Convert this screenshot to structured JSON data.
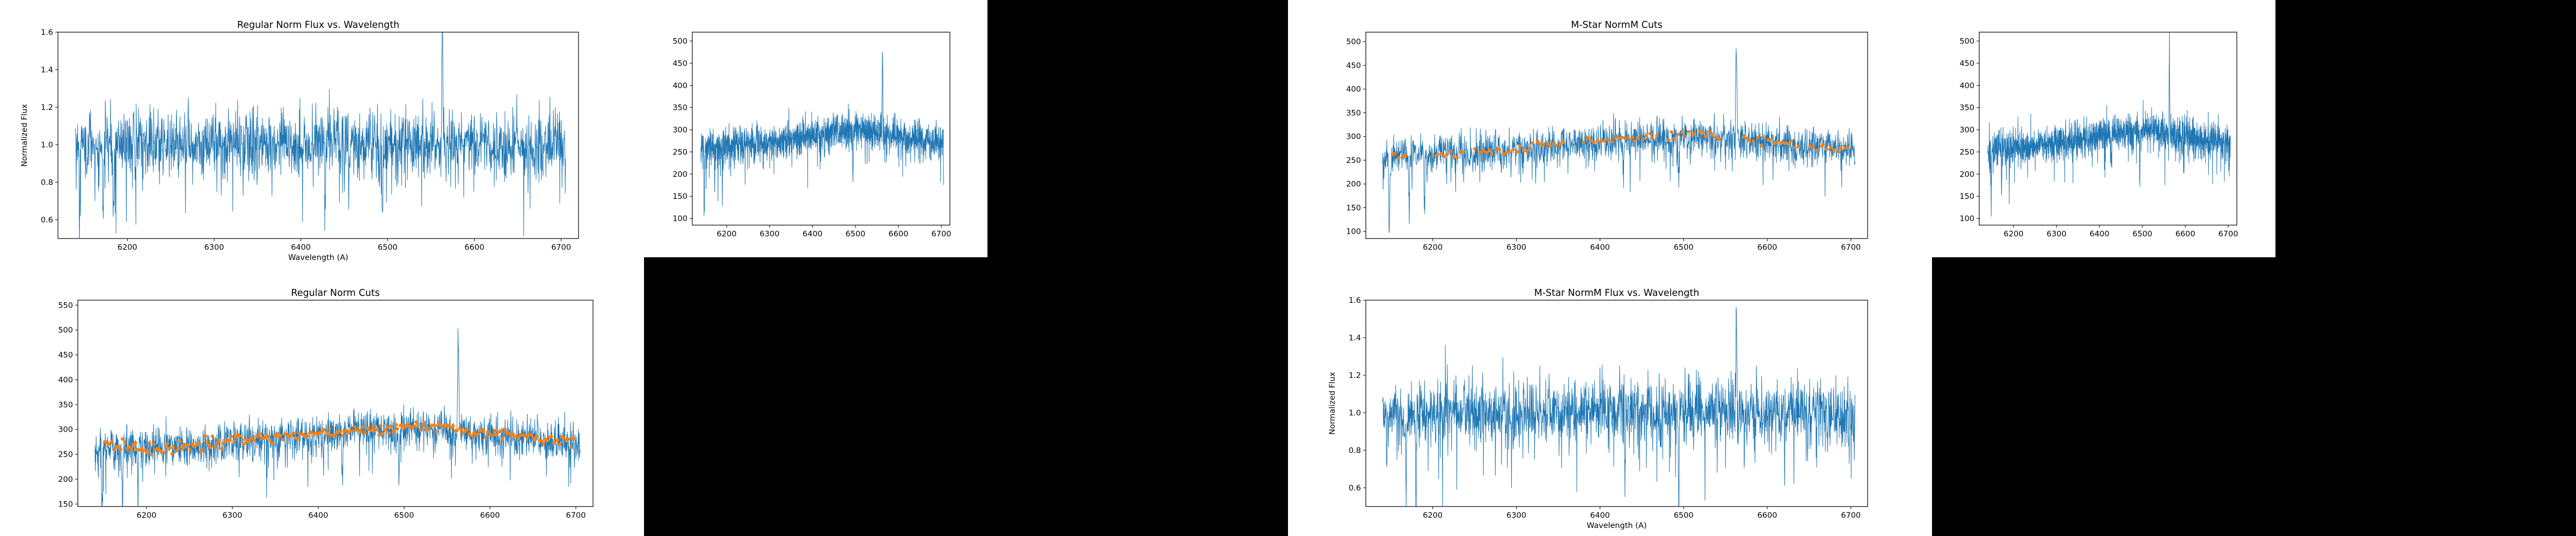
{
  "colors": {
    "background": "#000000",
    "figure": "#ffffff",
    "spectrum": "#1f77b4",
    "cut_points": "#ff7f0e"
  },
  "chart_data": [
    {
      "id": "regular-norm-flux",
      "type": "line",
      "title": "Regular Norm Flux vs. Wavelength",
      "xlabel": "Wavelength (A)",
      "ylabel": "Normalized Flux",
      "xlim": [
        6120,
        6720
      ],
      "ylim": [
        0.5,
        1.6
      ],
      "xticks": [
        6200,
        6300,
        6400,
        6500,
        6600,
        6700
      ],
      "yticks": [
        0.6,
        0.8,
        1.0,
        1.2,
        1.4,
        1.6
      ],
      "ytick_labels": [
        "0.6",
        "0.8",
        "1.0",
        "1.2",
        "1.4",
        "1.6"
      ],
      "series": [
        {
          "kind": "spectrum",
          "color": "#1f77b4",
          "x_range": [
            6140,
            6705
          ],
          "baseline": [
            [
              6140,
              1.0
            ],
            [
              6705,
              1.0
            ]
          ],
          "noise": 0.09,
          "features": [
            {
              "x": 6563,
              "dy": 0.57,
              "sigma": 0.7
            },
            {
              "x": 6145,
              "dy": -0.25,
              "sigma": 0.6
            },
            {
              "x": 6172,
              "dy": -0.5,
              "sigma": 0.5
            },
            {
              "x": 6184,
              "dy": -0.42,
              "sigma": 0.5
            },
            {
              "x": 6428,
              "dy": -0.38,
              "sigma": 0.5
            },
            {
              "x": 6494,
              "dy": -0.42,
              "sigma": 0.6
            },
            {
              "x": 6456,
              "dy": -0.2,
              "sigma": 0.5
            }
          ]
        }
      ]
    },
    {
      "id": "raw-flux-1",
      "type": "line",
      "title": "",
      "xlabel": "",
      "ylabel": "",
      "xlim": [
        6120,
        6720
      ],
      "ylim": [
        85,
        520
      ],
      "xticks": [
        6200,
        6300,
        6400,
        6500,
        6600,
        6700
      ],
      "yticks": [
        100,
        150,
        200,
        250,
        300,
        350,
        400,
        450,
        500
      ],
      "ytick_labels": [
        "100",
        "150",
        "200",
        "250",
        "300",
        "350",
        "400",
        "450",
        "500"
      ],
      "series": [
        {
          "kind": "spectrum",
          "color": "#1f77b4",
          "x_range": [
            6140,
            6705
          ],
          "baseline": [
            [
              6140,
              258
            ],
            [
              6250,
              265
            ],
            [
              6350,
              280
            ],
            [
              6450,
              295
            ],
            [
              6520,
              300
            ],
            [
              6600,
              285
            ],
            [
              6705,
              272
            ]
          ],
          "noise": 20,
          "features": [
            {
              "x": 6563,
              "dy": 200,
              "sigma": 0.7
            },
            {
              "x": 6148,
              "dy": -140,
              "sigma": 0.6
            },
            {
              "x": 6172,
              "dy": -110,
              "sigma": 0.5
            },
            {
              "x": 6190,
              "dy": -90,
              "sigma": 0.5
            },
            {
              "x": 6494,
              "dy": -110,
              "sigma": 0.6
            },
            {
              "x": 6428,
              "dy": -80,
              "sigma": 0.5
            }
          ]
        }
      ]
    },
    {
      "id": "mstar-normm-cuts",
      "type": "line",
      "title": "M-Star NormM Cuts",
      "xlabel": "",
      "ylabel": "",
      "xlim": [
        6120,
        6720
      ],
      "ylim": [
        85,
        520
      ],
      "xticks": [
        6200,
        6300,
        6400,
        6500,
        6600,
        6700
      ],
      "yticks": [
        100,
        150,
        200,
        250,
        300,
        350,
        400,
        450,
        500
      ],
      "ytick_labels": [
        "100",
        "150",
        "200",
        "250",
        "300",
        "350",
        "400",
        "450",
        "500"
      ],
      "series": [
        {
          "kind": "spectrum",
          "color": "#1f77b4",
          "x_range": [
            6140,
            6705
          ],
          "baseline": [
            [
              6140,
              258
            ],
            [
              6250,
              265
            ],
            [
              6350,
              280
            ],
            [
              6450,
              295
            ],
            [
              6520,
              300
            ],
            [
              6600,
              285
            ],
            [
              6705,
              272
            ]
          ],
          "noise": 20,
          "features": [
            {
              "x": 6563,
              "dy": 200,
              "sigma": 0.7
            },
            {
              "x": 6148,
              "dy": -140,
              "sigma": 0.6
            },
            {
              "x": 6172,
              "dy": -110,
              "sigma": 0.5
            },
            {
              "x": 6190,
              "dy": -90,
              "sigma": 0.5
            },
            {
              "x": 6494,
              "dy": -110,
              "sigma": 0.6
            },
            {
              "x": 6428,
              "dy": -80,
              "sigma": 0.5
            }
          ]
        },
        {
          "kind": "points",
          "color": "#ff7f0e",
          "x_range": [
            6150,
            6700
          ],
          "baseline": [
            [
              6150,
              262
            ],
            [
              6230,
              262
            ],
            [
              6300,
              275
            ],
            [
              6380,
              290
            ],
            [
              6450,
              300
            ],
            [
              6520,
              308
            ],
            [
              6560,
              300
            ],
            [
              6600,
              290
            ],
            [
              6700,
              276
            ]
          ],
          "segments": [
            [
              6150,
              6170
            ],
            [
              6200,
              6240
            ],
            [
              6250,
              6360
            ],
            [
              6380,
              6470
            ],
            [
              6480,
              6545
            ],
            [
              6570,
              6640
            ],
            [
              6650,
              6700
            ]
          ],
          "jitter": 5,
          "count": 110
        }
      ]
    },
    {
      "id": "raw-flux-2",
      "type": "line",
      "title": "",
      "xlabel": "",
      "ylabel": "",
      "xlim": [
        6120,
        6720
      ],
      "ylim": [
        85,
        520
      ],
      "xticks": [
        6200,
        6300,
        6400,
        6500,
        6600,
        6700
      ],
      "yticks": [
        100,
        150,
        200,
        250,
        300,
        350,
        400,
        450,
        500
      ],
      "ytick_labels": [
        "100",
        "150",
        "200",
        "250",
        "300",
        "350",
        "400",
        "450",
        "500"
      ],
      "series": [
        {
          "kind": "spectrum",
          "color": "#1f77b4",
          "x_range": [
            6140,
            6705
          ],
          "baseline": [
            [
              6140,
              258
            ],
            [
              6250,
              265
            ],
            [
              6350,
              280
            ],
            [
              6450,
              295
            ],
            [
              6520,
              300
            ],
            [
              6600,
              285
            ],
            [
              6705,
              272
            ]
          ],
          "noise": 20,
          "features": [
            {
              "x": 6563,
              "dy": 200,
              "sigma": 0.7
            },
            {
              "x": 6148,
              "dy": -140,
              "sigma": 0.6
            },
            {
              "x": 6172,
              "dy": -110,
              "sigma": 0.5
            },
            {
              "x": 6190,
              "dy": -90,
              "sigma": 0.5
            },
            {
              "x": 6494,
              "dy": -110,
              "sigma": 0.6
            },
            {
              "x": 6428,
              "dy": -80,
              "sigma": 0.5
            }
          ]
        }
      ]
    },
    {
      "id": "regular-norm-cuts",
      "type": "line",
      "title": "Regular Norm Cuts",
      "xlabel": "",
      "ylabel": "",
      "xlim": [
        6120,
        6720
      ],
      "ylim": [
        145,
        560
      ],
      "xticks": [
        6200,
        6300,
        6400,
        6500,
        6600,
        6700
      ],
      "yticks": [
        150,
        200,
        250,
        300,
        350,
        400,
        450,
        500,
        550
      ],
      "ytick_labels": [
        "150",
        "200",
        "250",
        "300",
        "350",
        "400",
        "450",
        "500",
        "550"
      ],
      "series": [
        {
          "kind": "spectrum",
          "color": "#1f77b4",
          "x_range": [
            6140,
            6705
          ],
          "baseline": [
            [
              6140,
              262
            ],
            [
              6250,
              265
            ],
            [
              6350,
              282
            ],
            [
              6450,
              296
            ],
            [
              6520,
              302
            ],
            [
              6600,
              288
            ],
            [
              6705,
              272
            ]
          ],
          "noise": 20,
          "features": [
            {
              "x": 6563,
              "dy": 200,
              "sigma": 0.7
            },
            {
              "x": 6148,
              "dy": -120,
              "sigma": 0.6
            },
            {
              "x": 6172,
              "dy": -120,
              "sigma": 0.5
            },
            {
              "x": 6190,
              "dy": -90,
              "sigma": 0.5
            },
            {
              "x": 6494,
              "dy": -110,
              "sigma": 0.6
            },
            {
              "x": 6428,
              "dy": -80,
              "sigma": 0.5
            }
          ]
        },
        {
          "kind": "points",
          "color": "#ff7f0e",
          "x_range": [
            6150,
            6700
          ],
          "baseline": [
            [
              6150,
              268
            ],
            [
              6230,
              262
            ],
            [
              6300,
              278
            ],
            [
              6380,
              290
            ],
            [
              6450,
              300
            ],
            [
              6520,
              306
            ],
            [
              6560,
              300
            ],
            [
              6600,
              292
            ],
            [
              6700,
              275
            ]
          ],
          "segments": [
            [
              6150,
              6700
            ]
          ],
          "jitter": 6,
          "count": 230
        }
      ]
    },
    {
      "id": "mstar-normm-flux",
      "type": "line",
      "title": "M-Star NormM Flux vs. Wavelength",
      "xlabel": "Wavelength (A)",
      "ylabel": "Normalized Flux",
      "xlim": [
        6120,
        6720
      ],
      "ylim": [
        0.5,
        1.6
      ],
      "xticks": [
        6200,
        6300,
        6400,
        6500,
        6600,
        6700
      ],
      "yticks": [
        0.6,
        0.8,
        1.0,
        1.2,
        1.4,
        1.6
      ],
      "ytick_labels": [
        "0.6",
        "0.8",
        "1.0",
        "1.2",
        "1.4",
        "1.6"
      ],
      "series": [
        {
          "kind": "spectrum",
          "color": "#1f77b4",
          "x_range": [
            6140,
            6705
          ],
          "baseline": [
            [
              6140,
              1.0
            ],
            [
              6705,
              1.0
            ]
          ],
          "noise": 0.09,
          "features": [
            {
              "x": 6563,
              "dy": 0.57,
              "sigma": 0.7
            },
            {
              "x": 6145,
              "dy": -0.25,
              "sigma": 0.6
            },
            {
              "x": 6168,
              "dy": -0.5,
              "sigma": 0.5
            },
            {
              "x": 6180,
              "dy": -0.45,
              "sigma": 0.5
            },
            {
              "x": 6430,
              "dy": -0.35,
              "sigma": 0.5
            },
            {
              "x": 6494,
              "dy": -0.4,
              "sigma": 0.6
            }
          ]
        }
      ]
    }
  ]
}
